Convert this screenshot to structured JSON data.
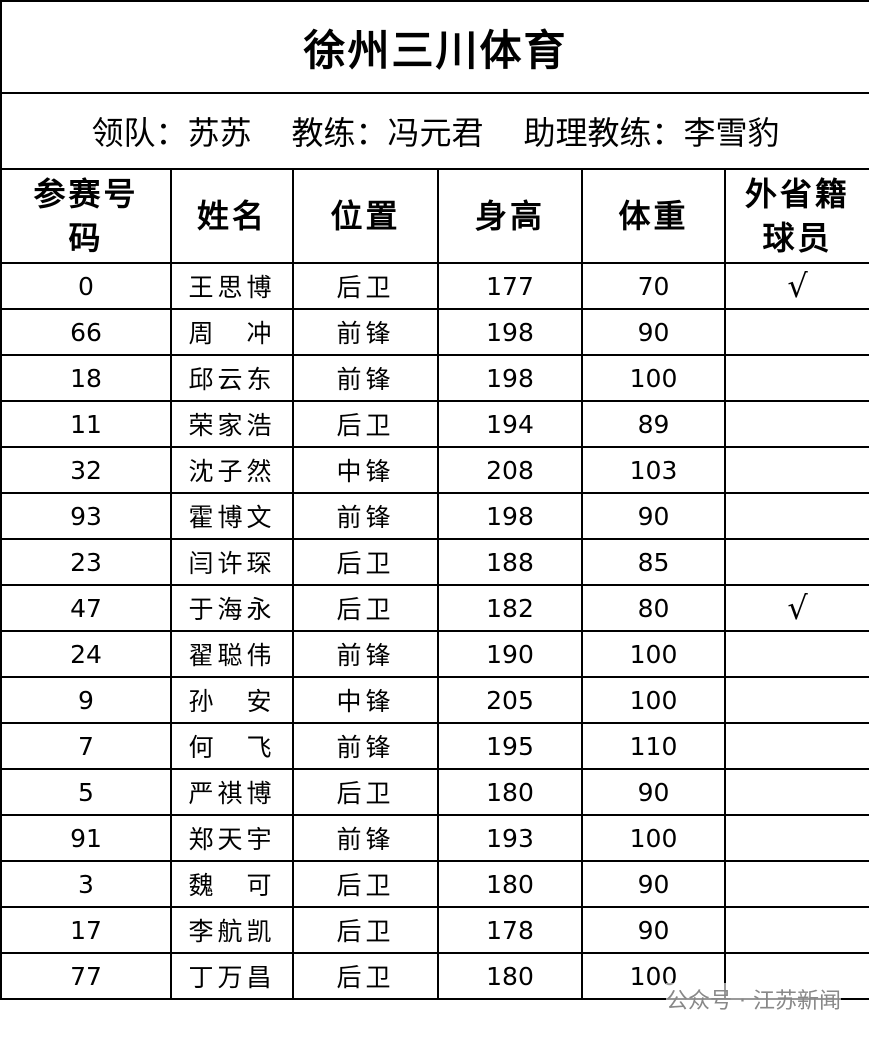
{
  "title": "徐州三川体育",
  "staff": [
    "领队：苏苏",
    "教练：冯元君",
    "助理教练：李雪豹"
  ],
  "header": [
    "参赛号码",
    "姓名",
    "位置",
    "身高",
    "体重",
    "外省籍球员"
  ],
  "rows": [
    {
      "number": 0,
      "name": "王思博",
      "position": "后卫",
      "height": 177,
      "weight": 70,
      "foreign": "√"
    },
    {
      "number": 66,
      "name": "周　冲",
      "position": "前锋",
      "height": 198,
      "weight": 90
    },
    {
      "number": 18,
      "name": "邱云东",
      "position": "前锋",
      "height": 198,
      "weight": 100
    },
    {
      "number": 11,
      "name": "荣家浩",
      "position": "后卫",
      "height": 194,
      "weight": 89
    },
    {
      "number": 32,
      "name": "沈子然",
      "position": "中锋",
      "height": 208,
      "weight": 103
    },
    {
      "number": 93,
      "name": "霍博文",
      "position": "前锋",
      "height": 198,
      "weight": 90
    },
    {
      "number": 23,
      "name": "闫许琛",
      "position": "后卫",
      "height": 188,
      "weight": 85
    },
    {
      "number": 47,
      "name": "于海永",
      "position": "后卫",
      "height": 182,
      "weight": 80,
      "foreign": "√"
    },
    {
      "number": 24,
      "name": "翟聪伟",
      "position": "前锋",
      "height": 190,
      "weight": 100
    },
    {
      "number": 9,
      "name": "孙　安",
      "position": "中锋",
      "height": 205,
      "weight": 100
    },
    {
      "number": 7,
      "name": "何　飞",
      "position": "前锋",
      "height": 195,
      "weight": 110
    },
    {
      "number": 5,
      "name": "严祺博",
      "position": "后卫",
      "height": 180,
      "weight": 90
    },
    {
      "number": 91,
      "name": "郑天宇",
      "position": "前锋",
      "height": 193,
      "weight": 100
    },
    {
      "number": 3,
      "name": "魏　可",
      "position": "后卫",
      "height": 180,
      "weight": 90
    },
    {
      "number": 17,
      "name": "李航凯",
      "position": "后卫",
      "height": 178,
      "weight": 90
    },
    {
      "number": 77,
      "name": "丁万昌",
      "position": "后卫",
      "height": 180,
      "weight": 100
    }
  ],
  "watermark": "公众号 · 江苏新闻"
}
